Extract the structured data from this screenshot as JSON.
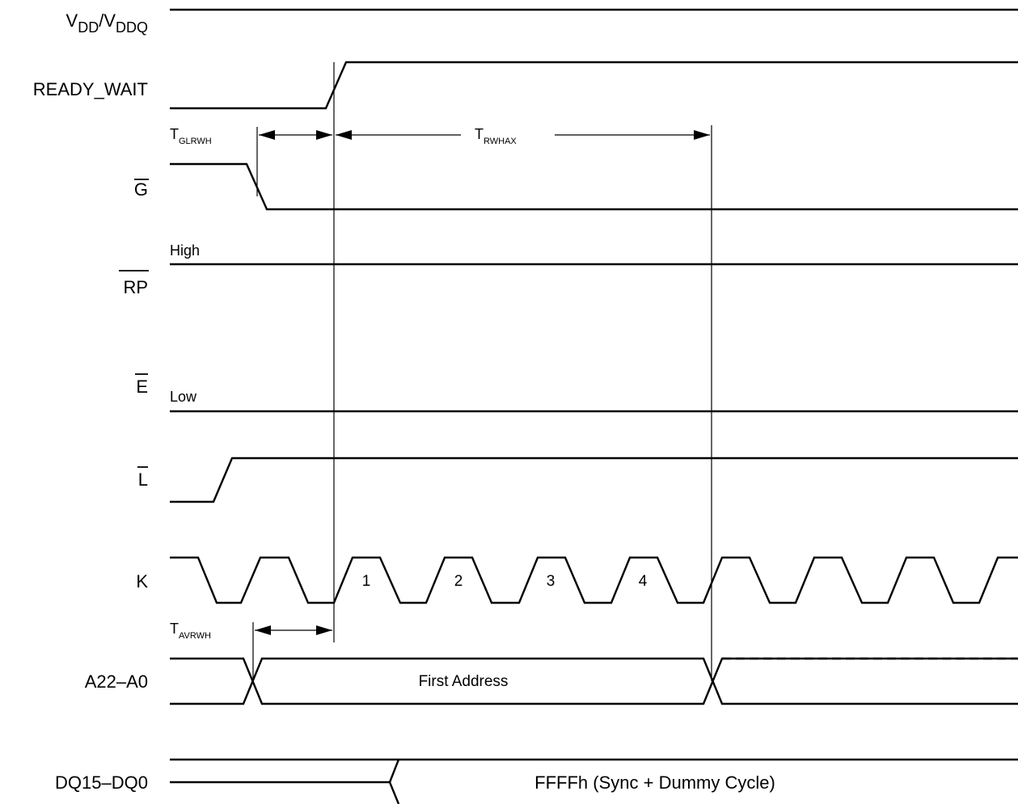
{
  "signals": {
    "vdd": {
      "main": "V",
      "sub1": "DD",
      "slash": "/V",
      "sub2": "DDQ"
    },
    "ready_wait": "READY_WAIT",
    "g": "G",
    "rp": "RP",
    "e": "E",
    "l": "L",
    "k": "K",
    "addr": "A22–A0",
    "dq": "DQ15–DQ0"
  },
  "levels": {
    "high": "High",
    "low": "Low"
  },
  "timings": {
    "tglrwh": {
      "main": "T",
      "sub": "GLRWH"
    },
    "trwhax": {
      "main": "T",
      "sub": "RWHAX"
    },
    "tavrwh": {
      "main": "T",
      "sub": "AVRWH"
    }
  },
  "clock_cycles": [
    "1",
    "2",
    "3",
    "4"
  ],
  "bus_labels": {
    "first_address": "First Address",
    "dq_value": "FFFFh (Sync + Dummy Cycle)"
  }
}
